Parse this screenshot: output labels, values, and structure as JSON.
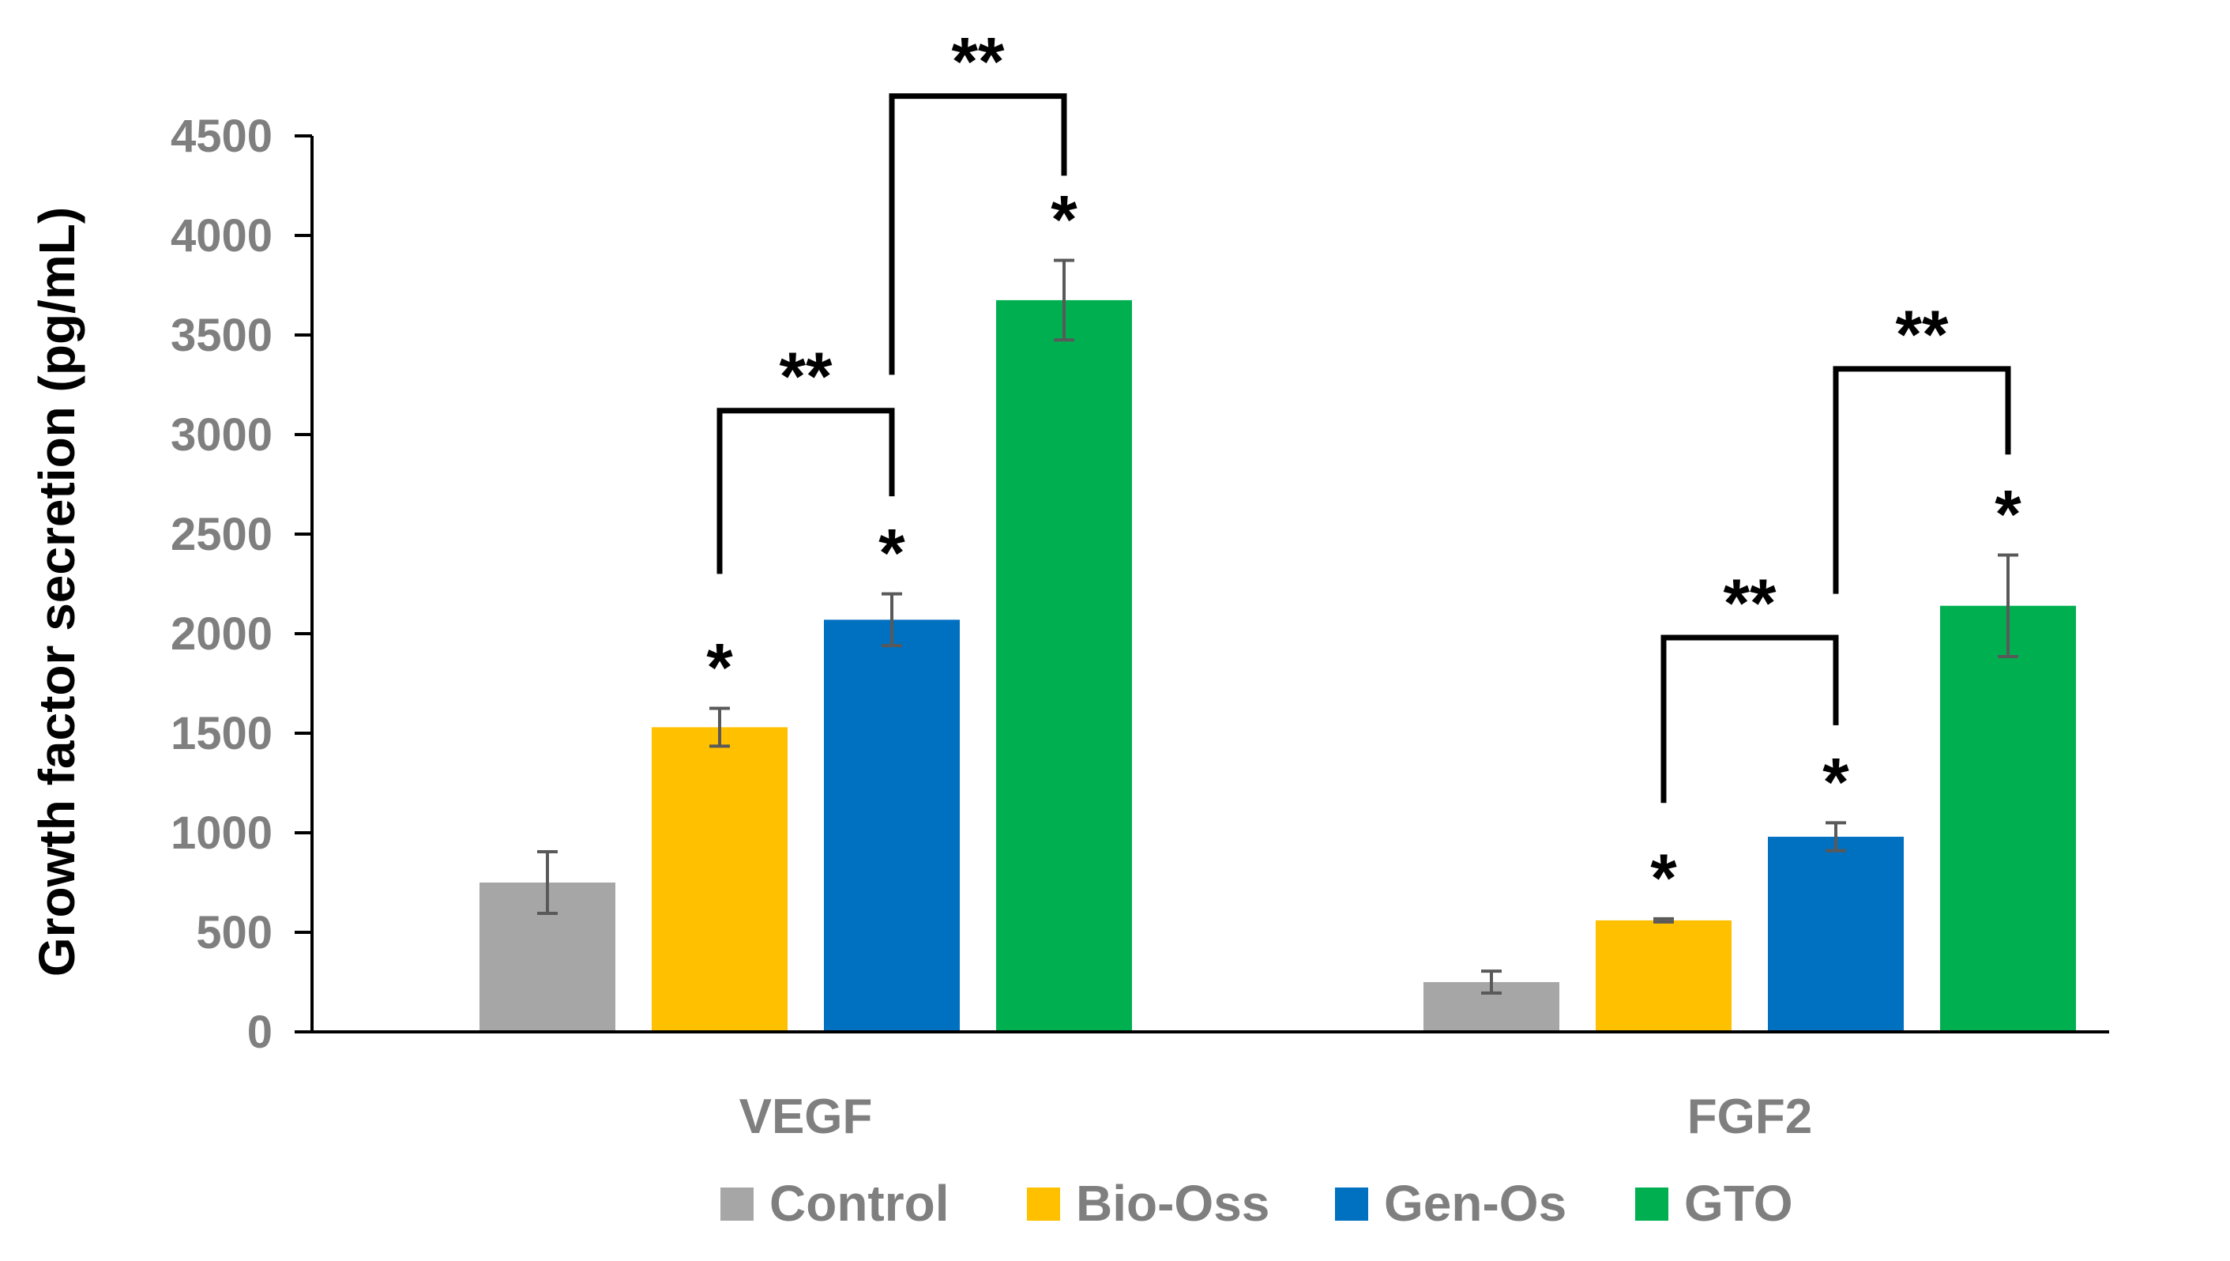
{
  "chart_data": {
    "type": "bar",
    "title": "",
    "xlabel": "",
    "ylabel": "Growth factor secretion (pg/mL)",
    "ylim": [
      0,
      4500
    ],
    "yticks": [
      0,
      500,
      1000,
      1500,
      2000,
      2500,
      3000,
      3500,
      4000,
      4500
    ],
    "grid": false,
    "legend_position": "bottom",
    "categories": [
      "VEGF",
      "FGF2"
    ],
    "series": [
      {
        "name": "Control",
        "color": "#a6a6a6",
        "values": [
          750,
          250
        ],
        "errors": [
          155,
          55
        ]
      },
      {
        "name": "Bio-Oss",
        "color": "#ffc000",
        "values": [
          1530,
          560
        ],
        "errors": [
          95,
          8
        ]
      },
      {
        "name": "Gen-Os",
        "color": "#0070c0",
        "values": [
          2070,
          980
        ],
        "errors": [
          130,
          70
        ]
      },
      {
        "name": "GTO",
        "color": "#00b050",
        "values": [
          3675,
          2140
        ],
        "errors": [
          200,
          255
        ]
      }
    ],
    "bar_stars": [
      {
        "category": 0,
        "series": 1,
        "text": "*"
      },
      {
        "category": 0,
        "series": 2,
        "text": "*"
      },
      {
        "category": 0,
        "series": 3,
        "text": "*"
      },
      {
        "category": 1,
        "series": 1,
        "text": "*"
      },
      {
        "category": 1,
        "series": 2,
        "text": "*"
      },
      {
        "category": 1,
        "series": 3,
        "text": "*"
      }
    ],
    "brackets": [
      {
        "category": 0,
        "from_series": 1,
        "to_series": 2,
        "text": "**",
        "top": 3120,
        "left_end": 2300,
        "right_end": 2690
      },
      {
        "category": 0,
        "from_series": 2,
        "to_series": 3,
        "text": "**",
        "top": 4700,
        "left_end": 3300,
        "right_end": 4300
      },
      {
        "category": 1,
        "from_series": 1,
        "to_series": 2,
        "text": "**",
        "top": 1980,
        "left_end": 1150,
        "right_end": 1540
      },
      {
        "category": 1,
        "from_series": 2,
        "to_series": 3,
        "text": "**",
        "top": 3330,
        "left_end": 2200,
        "right_end": 2900
      }
    ]
  }
}
